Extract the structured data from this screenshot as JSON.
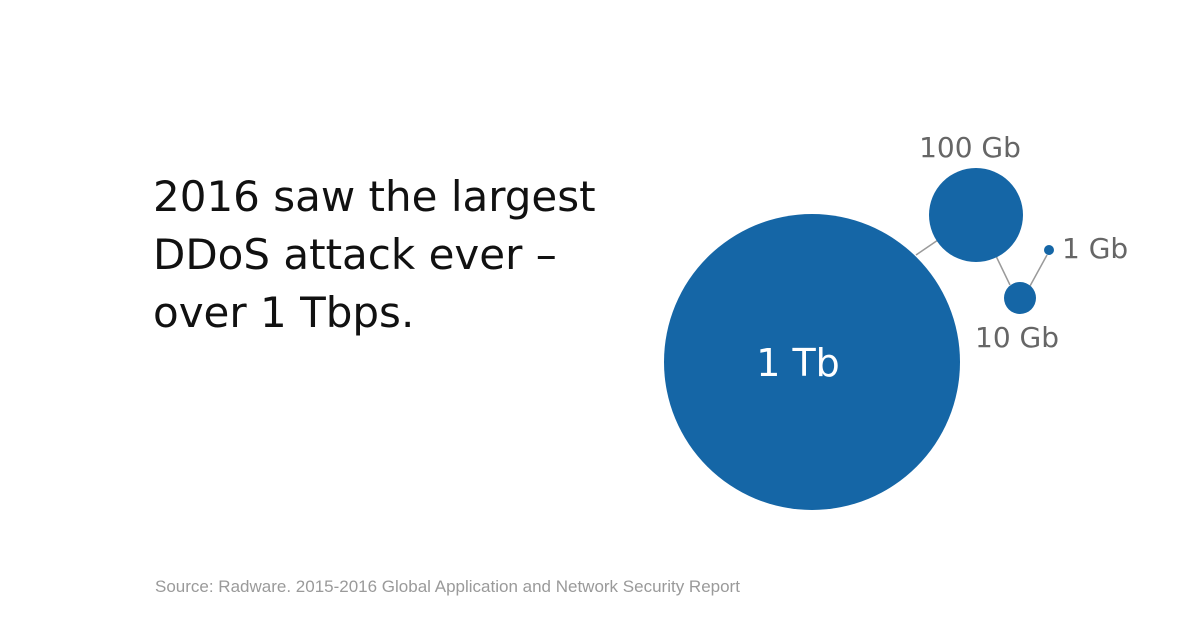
{
  "headline": {
    "lines": [
      "2016 saw the largest",
      "DDoS attack ever –",
      "over 1 Tbps."
    ]
  },
  "source": "Source: Radware. 2015-2016 Global Application and Network Security Report",
  "colors": {
    "bubble": "#1566A6",
    "connector": "#9a9a9a",
    "outer_label": "#666666",
    "inner_label": "#ffffff",
    "headline": "#111111"
  },
  "chart_data": {
    "type": "bubble",
    "title": "",
    "series": [
      {
        "label": "1 Tb",
        "value_gb": 1000
      },
      {
        "label": "100 Gb",
        "value_gb": 100
      },
      {
        "label": "10 Gb",
        "value_gb": 10
      },
      {
        "label": "1 Gb",
        "value_gb": 1
      }
    ]
  }
}
